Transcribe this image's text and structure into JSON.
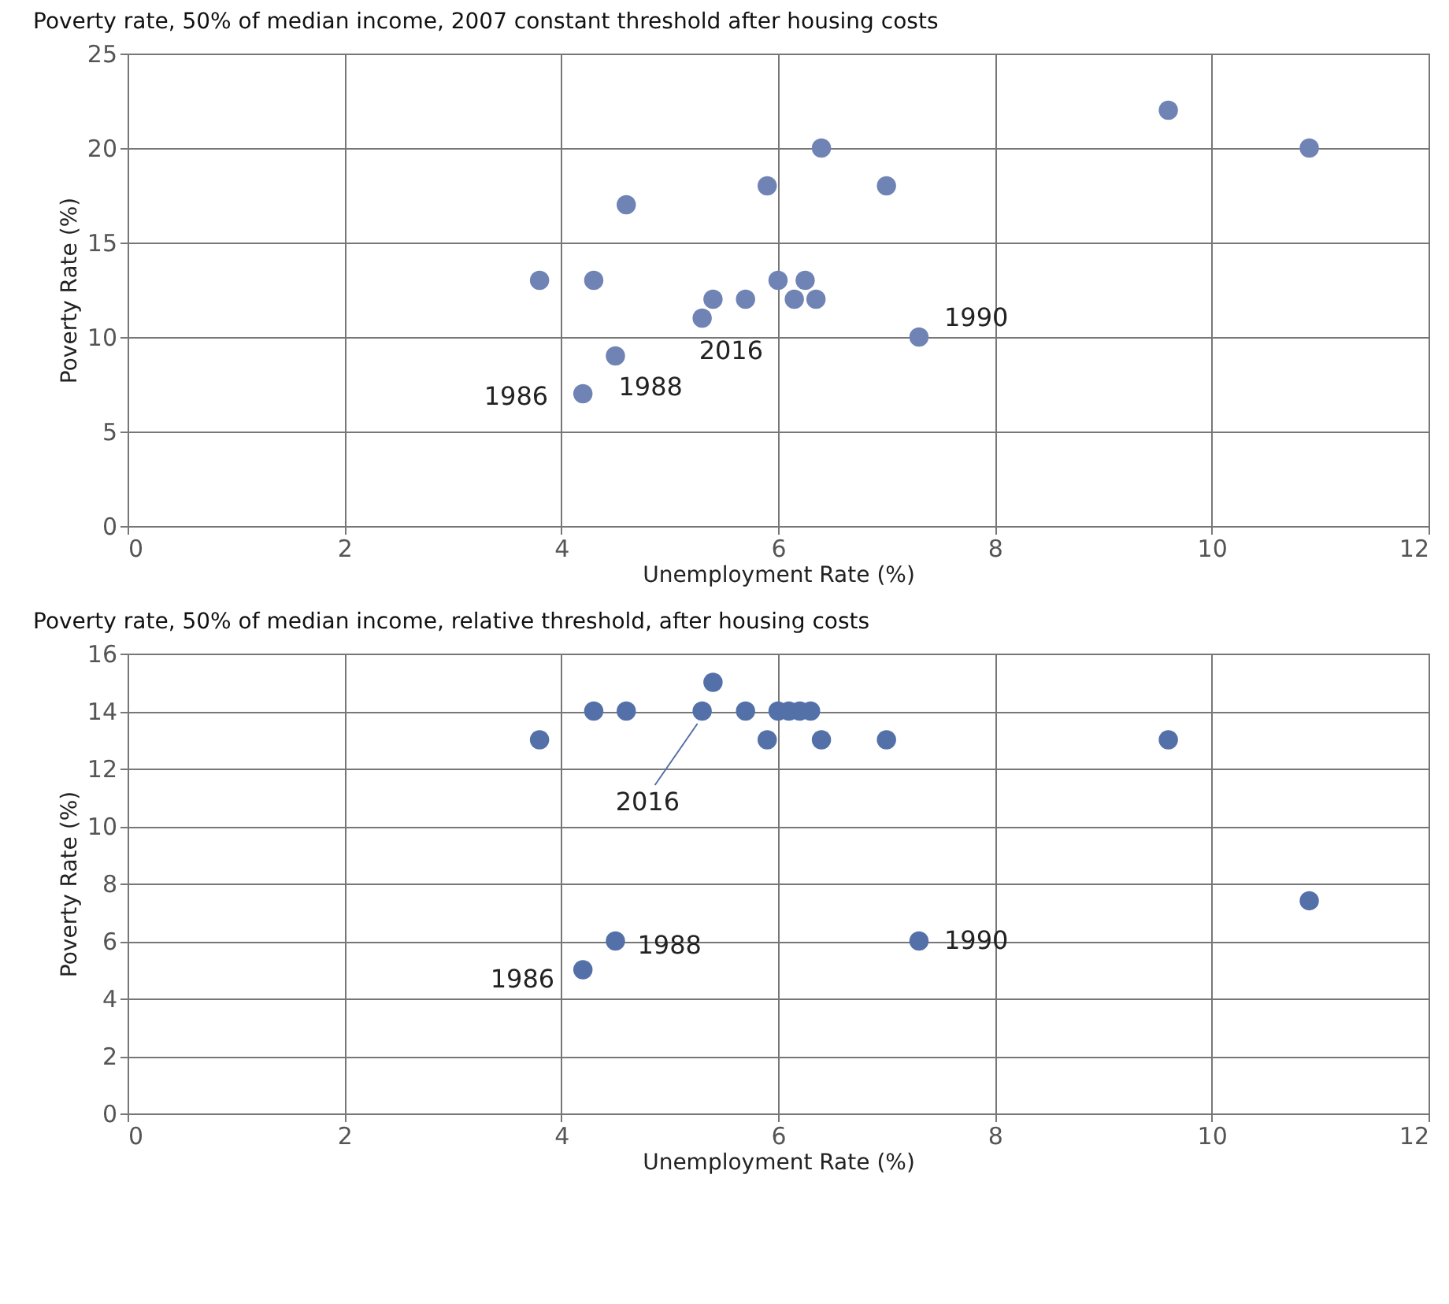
{
  "chart_data": [
    {
      "type": "scatter",
      "title": "Poverty rate, 50% of median income, 2007 constant threshold after housing costs",
      "xlabel": "Unemployment Rate (%)",
      "ylabel": "Poverty Rate (%)",
      "x": [
        3.8,
        4.3,
        4.6,
        4.5,
        4.2,
        5.3,
        5.4,
        5.7,
        5.9,
        6.0,
        6.15,
        6.25,
        6.35,
        6.4,
        7.0,
        7.3,
        9.6,
        10.9
      ],
      "series": [
        {
          "color": "#7083b5",
          "values": [
            13,
            13,
            17,
            9,
            7,
            11,
            12,
            12,
            18,
            13,
            12,
            13,
            12,
            20,
            18,
            10,
            22,
            20
          ]
        }
      ],
      "xlim": [
        0,
        12
      ],
      "xticks": [
        0,
        2,
        4,
        6,
        8,
        10,
        12
      ],
      "ylim": [
        0,
        25
      ],
      "yticks": [
        0,
        5,
        10,
        15,
        20,
        25
      ],
      "grid": true,
      "marker": "circle",
      "annotations": [
        {
          "text": "1986",
          "x": 4.2,
          "y": 7
        },
        {
          "text": "1988",
          "x": 4.5,
          "y": 9
        },
        {
          "text": "1990",
          "x": 7.3,
          "y": 10
        },
        {
          "text": "2016",
          "x": 5.3,
          "y": 11
        }
      ]
    },
    {
      "type": "scatter",
      "title": "Poverty rate, 50% of median income, relative threshold, after housing costs",
      "xlabel": "Unemployment Rate (%)",
      "ylabel": "Poverty Rate (%)",
      "x": [
        3.8,
        4.3,
        4.6,
        4.5,
        4.2,
        5.3,
        5.4,
        5.7,
        5.9,
        6.0,
        6.1,
        6.2,
        6.3,
        6.4,
        7.0,
        7.3,
        9.6,
        10.9
      ],
      "series": [
        {
          "color": "#5470a8",
          "values": [
            13,
            14,
            14,
            6,
            5,
            14,
            15,
            14,
            13,
            14,
            14,
            14,
            14,
            13,
            13,
            6,
            13,
            7.4
          ]
        }
      ],
      "xlim": [
        0,
        12
      ],
      "xticks": [
        0,
        2,
        4,
        6,
        8,
        10,
        12
      ],
      "ylim": [
        0,
        16
      ],
      "yticks": [
        0,
        2,
        4,
        6,
        8,
        10,
        12,
        14,
        16
      ],
      "grid": true,
      "marker": "circle",
      "annotations": [
        {
          "text": "1986",
          "x": 4.2,
          "y": 5
        },
        {
          "text": "1988",
          "x": 4.5,
          "y": 6
        },
        {
          "text": "1990",
          "x": 7.3,
          "y": 6
        },
        {
          "text": "2016",
          "x": 5.3,
          "y": 14
        }
      ]
    }
  ]
}
